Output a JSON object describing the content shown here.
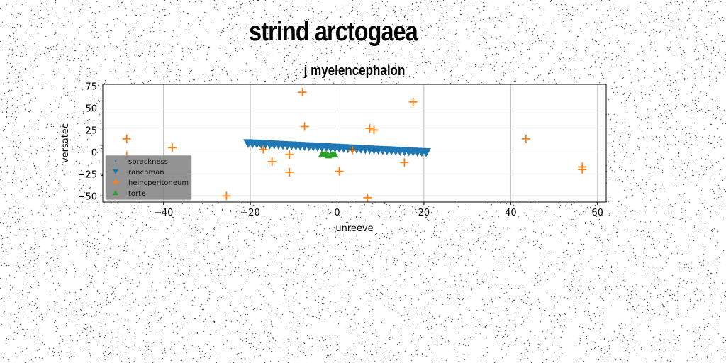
{
  "title": "strind arctogaea",
  "chart_data": {
    "type": "scatter",
    "title": "j myelencephalon",
    "xlabel": "unreeve",
    "ylabel": "versatec",
    "xlim": [
      -54,
      62
    ],
    "ylim": [
      -57,
      77
    ],
    "xticks": [
      -40,
      -20,
      0,
      20,
      40,
      60
    ],
    "yticks": [
      -50,
      -25,
      0,
      25,
      50,
      75
    ],
    "grid": true,
    "legend_position": "lower-left",
    "series": [
      {
        "name": "sprackness",
        "marker": "point",
        "color": "#1f77b4",
        "x": [],
        "y": []
      },
      {
        "name": "ranchman",
        "marker": "triangle-down",
        "color": "#1f77b4",
        "x": [
          -20.5,
          -19.5,
          -18.5,
          -17.5,
          -16.5,
          -15.5,
          -14.5,
          -13.5,
          -12.5,
          -11.5,
          -10.5,
          -9.5,
          -8.5,
          -7.5,
          -6.5,
          -5.5,
          -4.5,
          -3.5,
          -2.5,
          -1.5,
          -0.5,
          0.5,
          1.5,
          2.5,
          3.5,
          4.5,
          5.5,
          6.5,
          7.5,
          8.5,
          9.5,
          10.5,
          11.5,
          12.5,
          13.5,
          14.5,
          15.5,
          16.5,
          17.5,
          18.5,
          19.5,
          20.5
        ],
        "y": [
          10.0,
          9.7,
          9.5,
          9.2,
          9.0,
          8.7,
          8.5,
          8.2,
          8.0,
          7.7,
          7.5,
          7.2,
          7.0,
          6.7,
          6.5,
          6.2,
          6.0,
          5.7,
          5.5,
          5.2,
          5.0,
          4.7,
          4.5,
          4.2,
          4.0,
          3.7,
          3.5,
          3.2,
          3.0,
          2.7,
          2.5,
          2.2,
          2.0,
          1.7,
          1.5,
          1.2,
          1.0,
          0.7,
          0.5,
          0.2,
          0.0,
          -0.2
        ]
      },
      {
        "name": "heincperitoneum",
        "marker": "plus",
        "color": "#ff7f0e",
        "x": [
          -48.5,
          -48.5,
          -38,
          -25.5,
          -17,
          -15,
          -11,
          -11,
          -8,
          -7.5,
          0.5,
          3.5,
          7,
          7.5,
          8.5,
          15.5,
          17.5,
          43.5,
          56.5,
          56.5
        ],
        "y": [
          15,
          -4,
          5,
          -50,
          3,
          -11,
          -3,
          -23,
          68,
          29,
          -22,
          2,
          -52,
          27,
          25,
          -12,
          57,
          15,
          -17,
          -20
        ]
      },
      {
        "name": "torte",
        "marker": "triangle-up",
        "color": "#2ca02c",
        "x": [
          -3.5,
          -3,
          -2.5,
          -2,
          -1.5,
          -1,
          -0.5
        ],
        "y": [
          -2,
          -3,
          -2,
          -4,
          -3,
          -2,
          -3
        ]
      }
    ]
  }
}
